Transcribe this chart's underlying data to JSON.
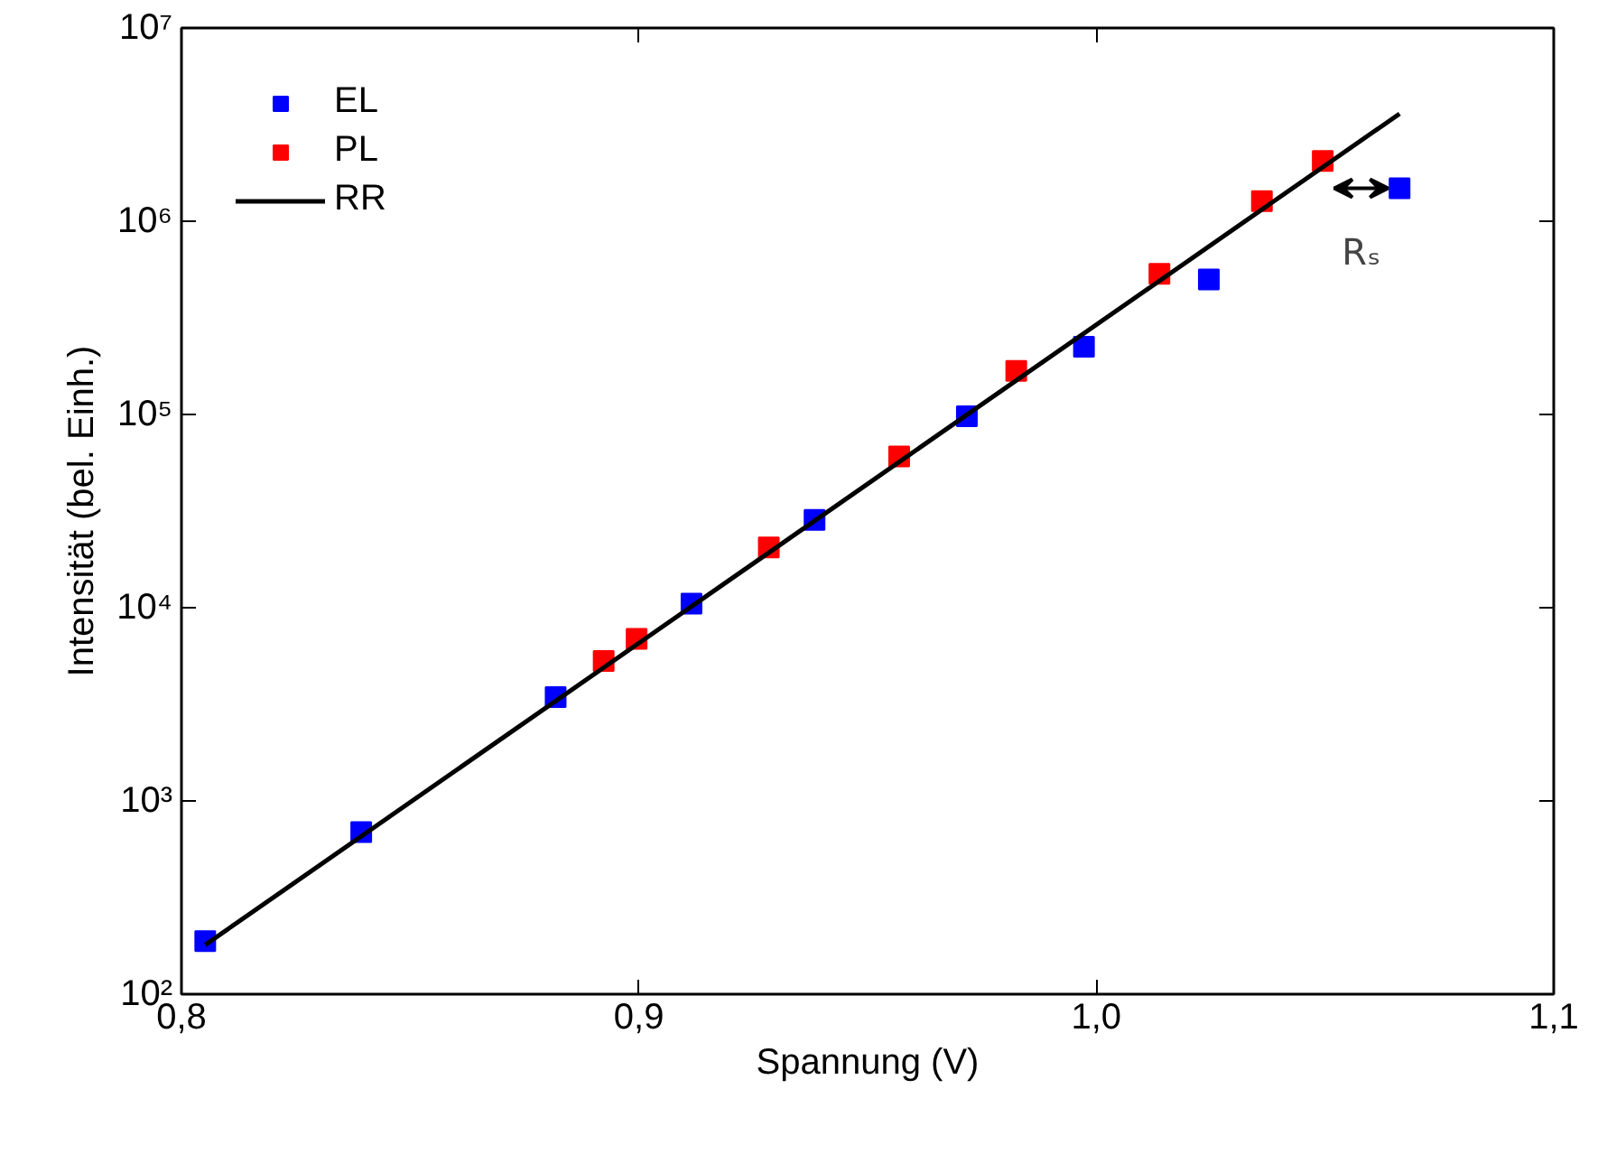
{
  "chart_data": {
    "type": "scatter",
    "xlabel": "Spannung (V)",
    "ylabel": "Intensität (bel. Einh.)",
    "log": "y",
    "grid": false,
    "legend": "top left",
    "xlim": [
      0.8,
      1.1
    ],
    "xticks": [
      {
        "value": 0.8,
        "label": "0,8"
      },
      {
        "value": 0.9,
        "label": "0,9"
      },
      {
        "value": 1.0,
        "label": "1,0"
      },
      {
        "value": 1.1,
        "label": "1,1"
      }
    ],
    "ylim": [
      100,
      10000000
    ],
    "yticks": [
      {
        "value": 100,
        "label": "10²"
      },
      {
        "value": 1000,
        "label": "10³"
      },
      {
        "value": 10000,
        "label": "10⁴"
      },
      {
        "value": 100000,
        "label": "10⁵"
      },
      {
        "value": 1000000,
        "label": "10⁶"
      },
      {
        "value": 10000000,
        "label": "10⁷"
      }
    ],
    "series": [
      {
        "name": "EL",
        "color": "#0000ff",
        "marker": "square",
        "x": [
          0.8052,
          0.8393,
          0.8818,
          0.9115,
          0.9384,
          0.9717,
          0.9973,
          1.0246,
          1.0663
        ],
        "values": [
          188,
          690,
          3450,
          10500,
          28500,
          98000,
          224000,
          500000,
          1480000
        ]
      },
      {
        "name": "PL",
        "color": "#ff0000",
        "marker": "square",
        "x": [
          0.8923,
          0.8995,
          0.9284,
          0.9569,
          0.9825,
          1.0138,
          1.0362,
          1.0495
        ],
        "values": [
          5300,
          6900,
          20500,
          60700,
          168000,
          535000,
          1270000,
          2050000
        ]
      },
      {
        "name": "RR",
        "color": "#000000",
        "type": "line",
        "line_style": "solid",
        "x": [
          0.8052,
          1.0663
        ],
        "values": [
          180,
          3600000
        ]
      }
    ],
    "annotations": [
      "Rₛ"
    ]
  }
}
